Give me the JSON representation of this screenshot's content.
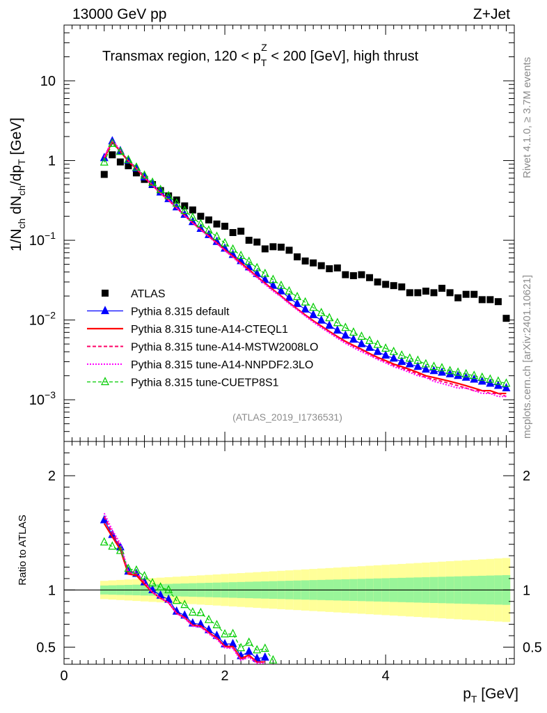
{
  "header": {
    "left": "13000 GeV pp",
    "right": "Z+Jet"
  },
  "side_labels": {
    "rivet": "Rivet 4.1.0, ≥ 3.7M events",
    "mcplots": "mcplots.cern.ch [arXiv:2401.10621]"
  },
  "chart_data": {
    "type": "line",
    "title": "Transmax region, 120 < p_T^Z < 200 [GeV], high thrust",
    "analysis_label": "(ATLAS_2019_I1736531)",
    "xlabel": "p_T [GeV]",
    "ylabel": "1/N_ch dN_ch/dp_T [GeV]",
    "ratio_ylabel": "Ratio to ATLAS",
    "xlim": [
      0,
      5.6
    ],
    "ylim": [
      0.0003,
      50
    ],
    "ratio_ylim": [
      0.35,
      2.3
    ],
    "yscale": "log",
    "x_ticks": [
      "0",
      "2",
      "4"
    ],
    "y_ticks": [
      "10^-3",
      "10^-2",
      "10^-1",
      "1",
      "10"
    ],
    "ratio_ticks": [
      "0.5",
      "1",
      "2"
    ],
    "legend": [
      "ATLAS",
      "Pythia 8.315 default",
      "Pythia 8.315 tune-A14-CTEQL1",
      "Pythia 8.315 tune-A14-MSTW2008LO",
      "Pythia 8.315 tune-A14-NNPDF2.3LO",
      "Pythia 8.315 tune-CUETP8S1"
    ],
    "x": [
      0.5,
      0.6,
      0.7,
      0.8,
      0.9,
      1.0,
      1.1,
      1.2,
      1.3,
      1.4,
      1.5,
      1.6,
      1.7,
      1.8,
      1.9,
      2.0,
      2.1,
      2.2,
      2.3,
      2.4,
      2.5,
      2.6,
      2.7,
      2.8,
      2.9,
      3.0,
      3.1,
      3.2,
      3.3,
      3.4,
      3.5,
      3.6,
      3.7,
      3.8,
      3.9,
      4.0,
      4.1,
      4.2,
      4.3,
      4.4,
      4.5,
      4.6,
      4.7,
      4.8,
      4.9,
      5.0,
      5.1,
      5.2,
      5.3,
      5.4,
      5.5
    ],
    "series": [
      {
        "name": "ATLAS",
        "color": "#000000",
        "values": [
          0.67,
          1.18,
          0.96,
          0.86,
          0.7,
          0.58,
          0.5,
          0.42,
          0.36,
          0.32,
          0.27,
          0.24,
          0.2,
          0.18,
          0.16,
          0.15,
          0.125,
          0.13,
          0.1,
          0.095,
          0.078,
          0.083,
          0.082,
          0.075,
          0.062,
          0.055,
          0.052,
          0.048,
          0.044,
          0.045,
          0.037,
          0.036,
          0.037,
          0.034,
          0.03,
          0.028,
          0.027,
          0.026,
          0.022,
          0.022,
          0.023,
          0.022,
          0.025,
          0.022,
          0.019,
          0.021,
          0.021,
          0.018,
          0.018,
          0.017,
          0.0105
        ]
      },
      {
        "name": "Pythia 8.315 default",
        "color": "#0000ff",
        "values": [
          1.08,
          1.75,
          1.32,
          1.0,
          0.8,
          0.62,
          0.5,
          0.4,
          0.33,
          0.26,
          0.21,
          0.17,
          0.14,
          0.117,
          0.096,
          0.079,
          0.066,
          0.055,
          0.046,
          0.038,
          0.032,
          0.027,
          0.023,
          0.019,
          0.016,
          0.0136,
          0.0116,
          0.0099,
          0.0085,
          0.0074,
          0.0064,
          0.0057,
          0.005,
          0.0045,
          0.004,
          0.0036,
          0.0033,
          0.003,
          0.0028,
          0.0026,
          0.0024,
          0.0023,
          0.0022,
          0.0021,
          0.002,
          0.0019,
          0.0018,
          0.0017,
          0.0016,
          0.0015,
          0.0014
        ]
      },
      {
        "name": "Pythia 8.315 tune-A14-CTEQL1",
        "color": "#ff0000",
        "values": [
          1.06,
          1.73,
          1.3,
          0.98,
          0.79,
          0.61,
          0.49,
          0.39,
          0.32,
          0.255,
          0.205,
          0.166,
          0.137,
          0.113,
          0.093,
          0.076,
          0.063,
          0.052,
          0.043,
          0.035,
          0.029,
          0.024,
          0.02,
          0.0165,
          0.0138,
          0.0116,
          0.0098,
          0.0084,
          0.0072,
          0.0062,
          0.0054,
          0.0048,
          0.0043,
          0.0038,
          0.0034,
          0.0031,
          0.0028,
          0.0026,
          0.0024,
          0.0022,
          0.002,
          0.0019,
          0.0018,
          0.0017,
          0.0016,
          0.0015,
          0.0014,
          0.0013,
          0.0013,
          0.0012,
          0.0012
        ]
      },
      {
        "name": "Pythia 8.315 tune-A14-MSTW2008LO",
        "color": "#ff0066",
        "values": [
          1.1,
          1.77,
          1.33,
          0.99,
          0.8,
          0.62,
          0.49,
          0.39,
          0.32,
          0.255,
          0.204,
          0.165,
          0.136,
          0.112,
          0.092,
          0.075,
          0.062,
          0.051,
          0.042,
          0.035,
          0.029,
          0.024,
          0.02,
          0.0165,
          0.0138,
          0.0115,
          0.0097,
          0.0083,
          0.0071,
          0.0061,
          0.0053,
          0.0047,
          0.0042,
          0.0037,
          0.0033,
          0.003,
          0.0027,
          0.0025,
          0.0023,
          0.0021,
          0.0019,
          0.0018,
          0.0017,
          0.0016,
          0.0015,
          0.0014,
          0.0013,
          0.0013,
          0.0012,
          0.0012,
          0.0011
        ]
      },
      {
        "name": "Pythia 8.315 tune-A14-NNPDF2.3LO",
        "color": "#ff00ff",
        "values": [
          1.12,
          1.8,
          1.35,
          1.0,
          0.81,
          0.62,
          0.49,
          0.39,
          0.32,
          0.254,
          0.203,
          0.164,
          0.135,
          0.111,
          0.091,
          0.074,
          0.061,
          0.05,
          0.041,
          0.034,
          0.028,
          0.023,
          0.0195,
          0.016,
          0.0134,
          0.0112,
          0.0094,
          0.008,
          0.0069,
          0.0059,
          0.0051,
          0.0045,
          0.004,
          0.0036,
          0.0032,
          0.0029,
          0.0026,
          0.0024,
          0.0022,
          0.002,
          0.0019,
          0.0017,
          0.0016,
          0.0015,
          0.0014,
          0.0014,
          0.0013,
          0.0012,
          0.0012,
          0.0011,
          0.0011
        ]
      },
      {
        "name": "Pythia 8.315 tune-CUETP8S1",
        "color": "#00cc00",
        "values": [
          0.95,
          1.63,
          1.29,
          1.02,
          0.82,
          0.65,
          0.53,
          0.43,
          0.36,
          0.29,
          0.235,
          0.193,
          0.16,
          0.133,
          0.111,
          0.092,
          0.077,
          0.064,
          0.054,
          0.045,
          0.038,
          0.032,
          0.027,
          0.023,
          0.0195,
          0.0167,
          0.0143,
          0.0123,
          0.0106,
          0.0092,
          0.008,
          0.007,
          0.0062,
          0.0055,
          0.0049,
          0.0044,
          0.004,
          0.0036,
          0.0033,
          0.0031,
          0.0028,
          0.0026,
          0.0025,
          0.0023,
          0.0022,
          0.0021,
          0.002,
          0.0019,
          0.0018,
          0.0017,
          0.0016
        ]
      }
    ]
  }
}
